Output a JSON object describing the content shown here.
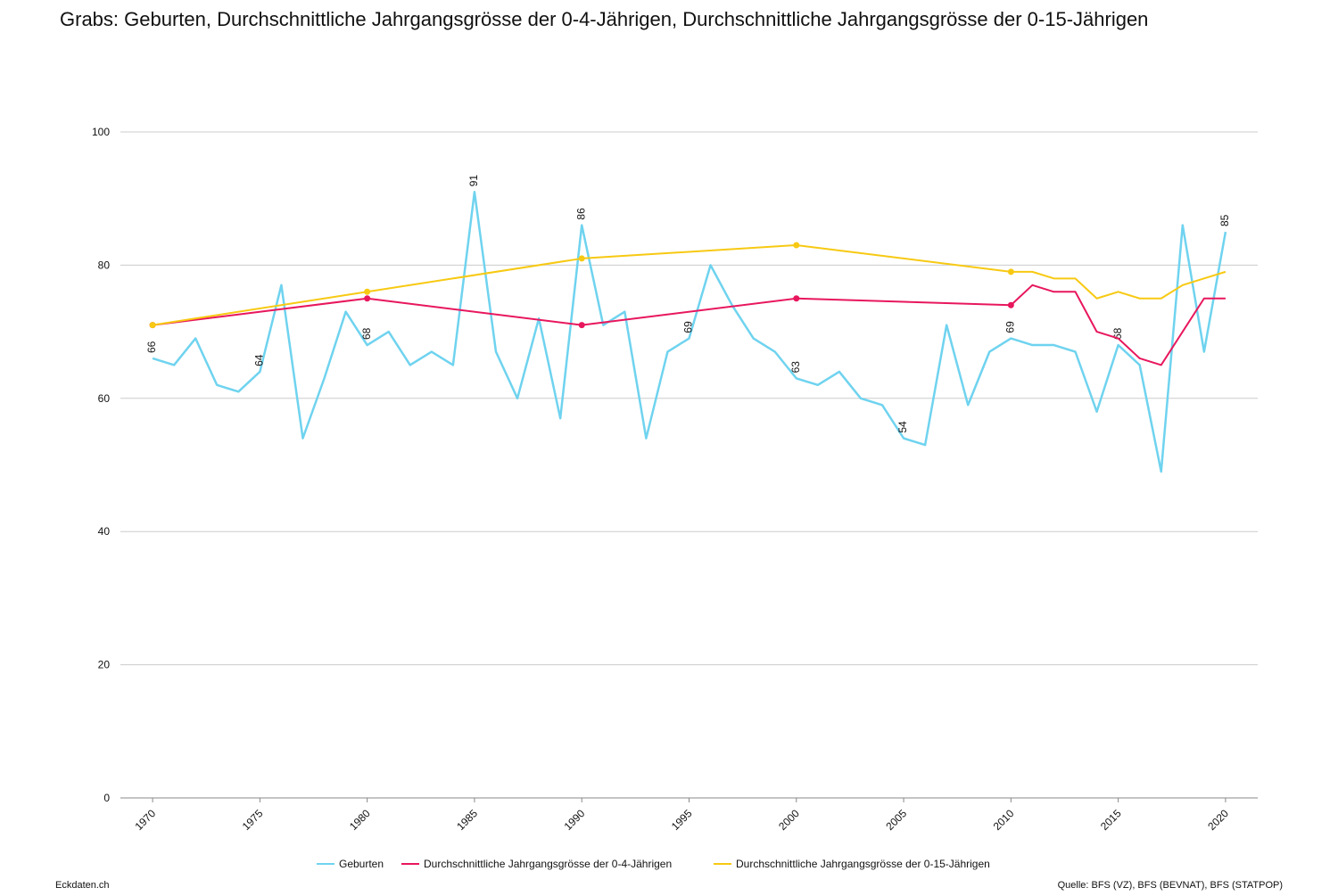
{
  "chart_data": {
    "type": "line",
    "title": "Grabs: Geburten, Durchschnittliche Jahrgangsgrösse der 0-4-Jährigen, Durchschnittliche Jahrgangsgrösse der 0-15-Jährigen",
    "xlim": [
      1968.5,
      2021.5
    ],
    "xticks": [
      1970,
      1975,
      1980,
      1985,
      1990,
      1995,
      2000,
      2005,
      2010,
      2015,
      2020
    ],
    "ylim": [
      0,
      100
    ],
    "yticks": [
      0,
      20,
      40,
      60,
      80,
      100
    ],
    "grid": true,
    "legend": "bottom",
    "series": [
      {
        "name": "Geburten",
        "color": "#6fd3ef",
        "x": [
          1970,
          1971,
          1972,
          1973,
          1974,
          1975,
          1976,
          1977,
          1978,
          1979,
          1980,
          1981,
          1982,
          1983,
          1984,
          1985,
          1986,
          1987,
          1988,
          1989,
          1990,
          1991,
          1992,
          1993,
          1994,
          1995,
          1996,
          1997,
          1998,
          1999,
          2000,
          2001,
          2002,
          2003,
          2004,
          2005,
          2006,
          2007,
          2008,
          2009,
          2010,
          2011,
          2012,
          2013,
          2014,
          2015,
          2016,
          2017,
          2018,
          2019,
          2020
        ],
        "values": [
          66,
          65,
          69,
          62,
          61,
          64,
          77,
          54,
          63,
          73,
          68,
          70,
          65,
          67,
          65,
          91,
          67,
          60,
          72,
          57,
          86,
          71,
          73,
          54,
          67,
          69,
          80,
          74,
          69,
          67,
          63,
          62,
          64,
          60,
          59,
          54,
          53,
          71,
          59,
          67,
          69,
          68,
          68,
          67,
          58,
          68,
          65,
          49,
          86,
          67,
          85
        ]
      },
      {
        "name": "Durchschnittliche Jahrgangsgrösse der 0-4-Jährigen",
        "color": "#e8175d",
        "x": [
          1970,
          1980,
          1990,
          2000,
          2010,
          2011,
          2012,
          2013,
          2014,
          2015,
          2016,
          2017,
          2018,
          2019,
          2020
        ],
        "values": [
          71,
          75,
          71,
          75,
          74,
          77,
          76,
          76,
          70,
          69,
          66,
          65,
          70,
          75,
          75
        ]
      },
      {
        "name": "Durchschnittliche Jahrgangsgrösse der 0-15-Jährigen",
        "color": "#f7c912",
        "x": [
          1970,
          1980,
          1990,
          2000,
          2010,
          2011,
          2012,
          2013,
          2014,
          2015,
          2016,
          2017,
          2018,
          2019,
          2020
        ],
        "values": [
          71,
          76,
          81,
          83,
          79,
          79,
          78,
          78,
          75,
          76,
          75,
          75,
          77,
          78,
          79
        ]
      }
    ]
  },
  "footer": {
    "left": "Eckdaten.ch",
    "right": "Quelle: BFS (VZ), BFS (BEVNAT), BFS (STATPOP)"
  }
}
